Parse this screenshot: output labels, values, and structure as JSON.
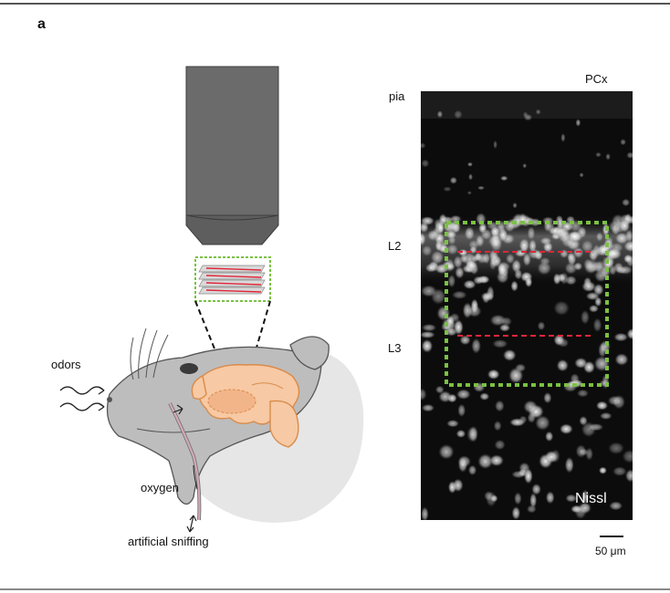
{
  "figure": {
    "panel_letter": "a",
    "left_labels": {
      "odors": "odors",
      "oxygen": "oxygen",
      "artificial_sniffing": "artificial sniffing"
    },
    "micrograph": {
      "region": "PCx",
      "layers": [
        "pia",
        "L2",
        "L3"
      ],
      "stain": "Nissl",
      "scale_bar": "50 μm"
    },
    "colors": {
      "objective": "#6b6b6b",
      "brain": "#f7c9a4",
      "brain_outline": "#d98b4a",
      "roi_box": "#7ac143",
      "imaging_plane": "#e0263a",
      "mouse_body": "#bdbdbd",
      "background_head": "#e6e6e6"
    }
  }
}
